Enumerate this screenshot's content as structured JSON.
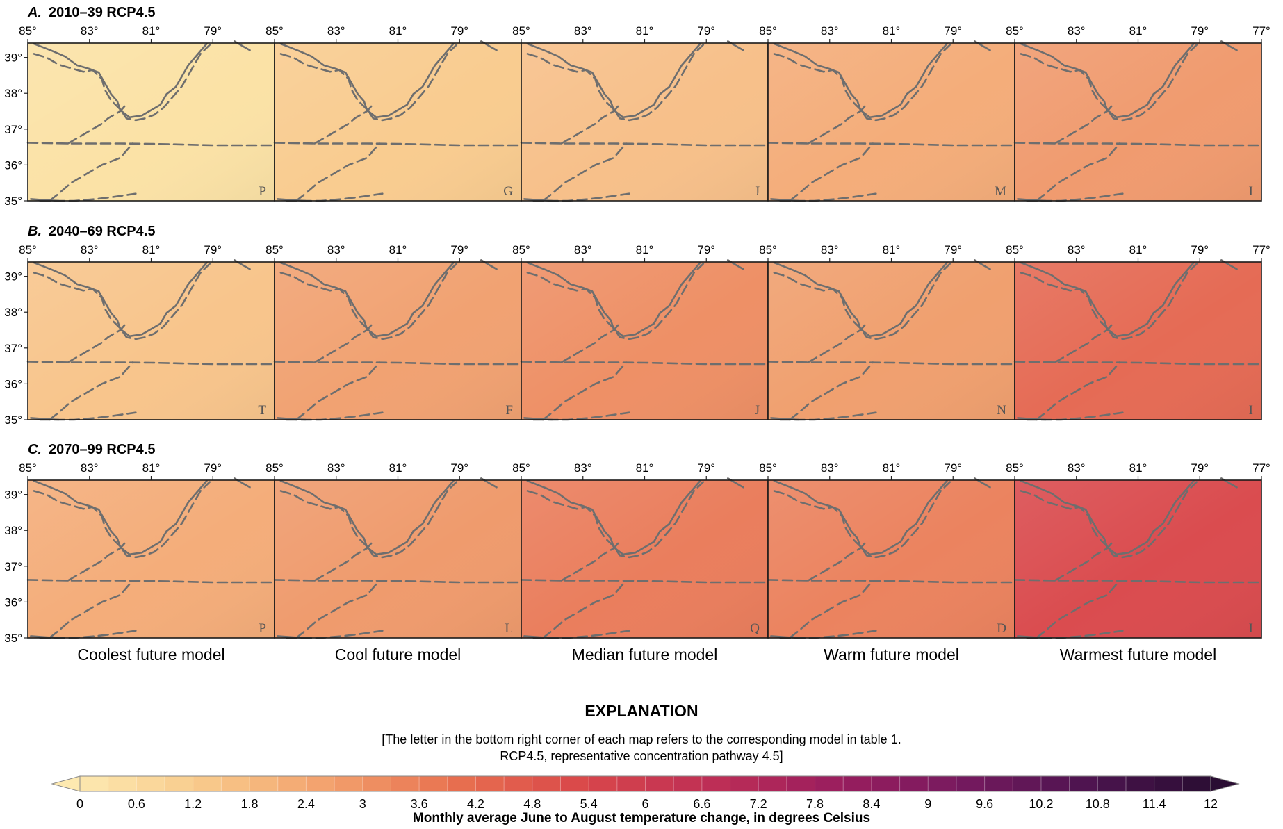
{
  "rows": [
    {
      "letter": "A.",
      "title": "2010–39 RCP4.5",
      "models": [
        "P",
        "G",
        "J",
        "M",
        "I"
      ],
      "colors": [
        "#fbe2a6",
        "#f9cc90",
        "#f7c08a",
        "#f4ad7a",
        "#f09b6f"
      ]
    },
    {
      "letter": "B.",
      "title": "2040–69 RCP4.5",
      "models": [
        "T",
        "F",
        "J",
        "N",
        "I"
      ],
      "colors": [
        "#f8c58c",
        "#f1a272",
        "#ee9066",
        "#f0a06f",
        "#e56b55"
      ]
    },
    {
      "letter": "C.",
      "title": "2070–99 RCP4.5",
      "models": [
        "P",
        "L",
        "Q",
        "D",
        "I"
      ],
      "colors": [
        "#f4ad7a",
        "#ef9b6d",
        "#ea7e5d",
        "#eb835f",
        "#da4c4f"
      ]
    }
  ],
  "lon_ticks_first": [
    "85°",
    "83°",
    "81°",
    "79°"
  ],
  "lon_tick_last": "77°",
  "lat_ticks": [
    "39°",
    "38°",
    "37°",
    "36°",
    "35°"
  ],
  "column_labels": [
    "Coolest future model",
    "Cool future model",
    "Median future model",
    "Warm future model",
    "Warmest future model"
  ],
  "explanation": {
    "heading": "EXPLANATION",
    "note_line1": "[The letter in the bottom right corner of each map refers to the corresponding model in table 1.",
    "note_line2": "RCP4.5, representative concentration pathway 4.5]",
    "colorbar": {
      "ticks": [
        "0",
        "0.6",
        "1.2",
        "1.8",
        "2.4",
        "3",
        "3.6",
        "4.2",
        "4.8",
        "5.4",
        "6",
        "6.6",
        "7.2",
        "7.8",
        "8.4",
        "9",
        "9.6",
        "10.2",
        "10.8",
        "11.4",
        "12"
      ],
      "min": 0,
      "max": 12,
      "step": 0.3,
      "colors": [
        "#fde9b0",
        "#f8c98a",
        "#f29f6c",
        "#e8704f",
        "#d9474a",
        "#bf2f55",
        "#9b1e5e",
        "#771a5f",
        "#4e1450",
        "#2a0d33"
      ],
      "label": "Monthly average June to August temperature change, in degrees Celsius"
    }
  }
}
